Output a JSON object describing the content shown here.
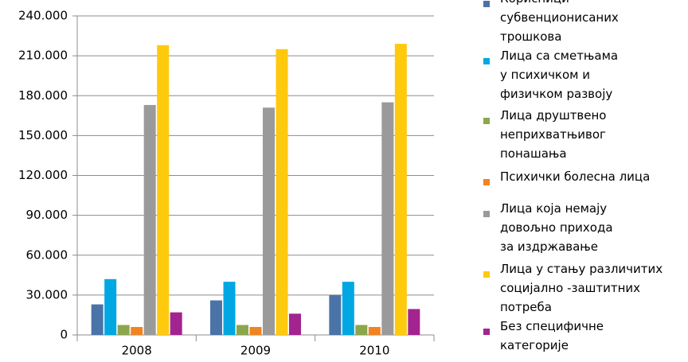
{
  "chart_data": {
    "type": "bar",
    "categories": [
      "2008",
      "2009",
      "2010"
    ],
    "ylim": [
      0,
      240000
    ],
    "yticks": [
      0,
      {
        "value": 30000,
        "label": "30.000"
      },
      {
        "value": 60000,
        "label": "60.000"
      },
      {
        "value": 90000,
        "label": "90.000"
      },
      {
        "value": 120000,
        "label": "120.000"
      },
      {
        "value": 150000,
        "label": "150.000"
      },
      {
        "value": 180000,
        "label": "180.000"
      },
      {
        "value": 210000,
        "label": "210.000"
      },
      {
        "value": 240000,
        "label": "240.000"
      }
    ],
    "grid": true,
    "legend": "right",
    "series": [
      {
        "name": "Корисници\nсубвенционисаних\nтрошкова",
        "color": "#4a73a8",
        "values": [
          23000,
          26000,
          30000
        ]
      },
      {
        "name": "Лица са сметњама\nу психичком и\nфизичком развоју",
        "color": "#00a7e3",
        "values": [
          42000,
          40000,
          40000
        ]
      },
      {
        "name": "Лица друштвено\nнеприхватњивог\nпонашања",
        "color": "#8ca64c",
        "values": [
          7500,
          7500,
          7500
        ]
      },
      {
        "name": "Психички болесна лица",
        "color": "#f28322",
        "values": [
          6000,
          6000,
          6000
        ]
      },
      {
        "name": "Лица која немају\nдовољно прихода\nза издржавање",
        "color": "#9a9a9a",
        "values": [
          173000,
          171000,
          175000
        ]
      },
      {
        "name": "Лица у стању различитих\nсоцијално -заштитних\nпотреба",
        "color": "#ffc90e",
        "values": [
          218000,
          215000,
          219000
        ]
      },
      {
        "name": "Без специфичне\nкатегорије",
        "color": "#a3248e",
        "values": [
          17000,
          16000,
          19500
        ]
      }
    ]
  }
}
